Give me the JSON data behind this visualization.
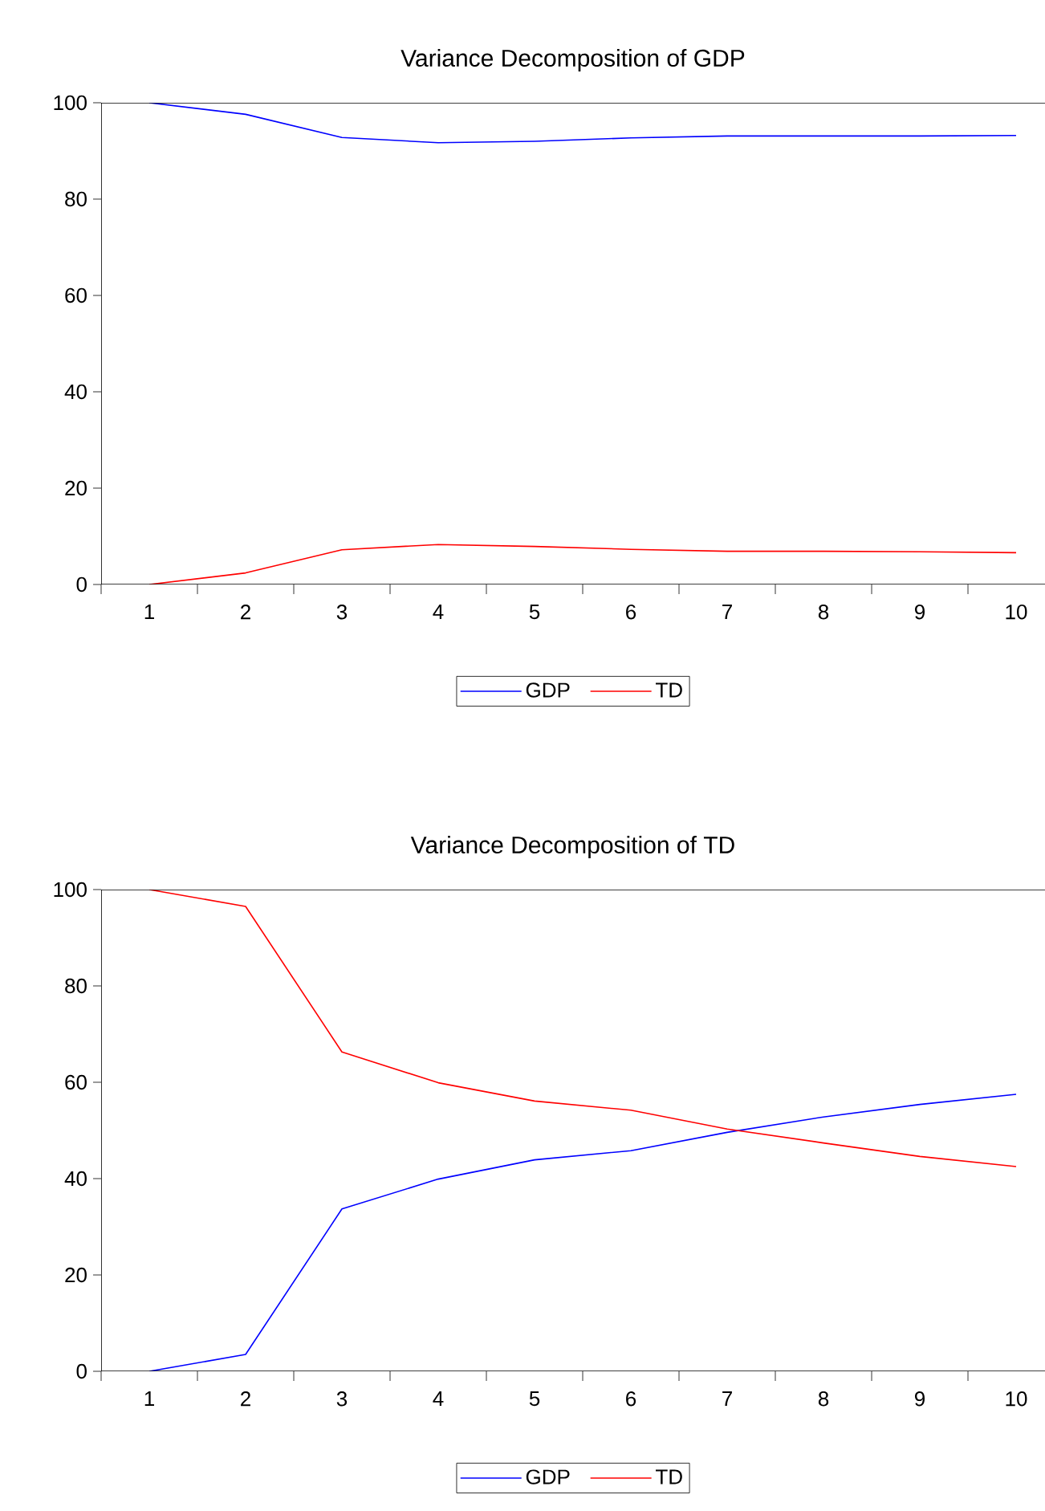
{
  "chart_data": [
    {
      "type": "line",
      "title": "Variance Decomposition of GDP",
      "categories": [
        "1",
        "2",
        "3",
        "4",
        "5",
        "6",
        "7",
        "8",
        "9",
        "10"
      ],
      "series": [
        {
          "name": "GDP",
          "color": "#0000ff",
          "values": [
            100,
            97.6,
            92.8,
            91.7,
            92.0,
            92.7,
            93.1,
            93.1,
            93.1,
            93.2
          ]
        },
        {
          "name": "TD",
          "color": "#ff0000",
          "values": [
            0,
            2.4,
            7.2,
            8.3,
            7.9,
            7.3,
            6.9,
            6.9,
            6.8,
            6.6
          ]
        }
      ],
      "ylim": [
        0,
        100
      ],
      "yticks": [
        0,
        20,
        40,
        60,
        80,
        100
      ],
      "legend": "bottom",
      "grid": false
    },
    {
      "type": "line",
      "title": "Variance Decomposition of TD",
      "categories": [
        "1",
        "2",
        "3",
        "4",
        "5",
        "6",
        "7",
        "8",
        "9",
        "10"
      ],
      "series": [
        {
          "name": "GDP",
          "color": "#0000ff",
          "values": [
            0,
            3.5,
            33.7,
            39.9,
            43.9,
            45.8,
            49.6,
            52.8,
            55.4,
            57.5
          ]
        },
        {
          "name": "TD",
          "color": "#ff0000",
          "values": [
            100,
            96.5,
            66.3,
            59.9,
            56.1,
            54.2,
            50.3,
            47.4,
            44.6,
            42.5
          ]
        }
      ],
      "ylim": [
        0,
        100
      ],
      "yticks": [
        0,
        20,
        40,
        60,
        80,
        100
      ],
      "legend": "bottom",
      "grid": false
    }
  ]
}
